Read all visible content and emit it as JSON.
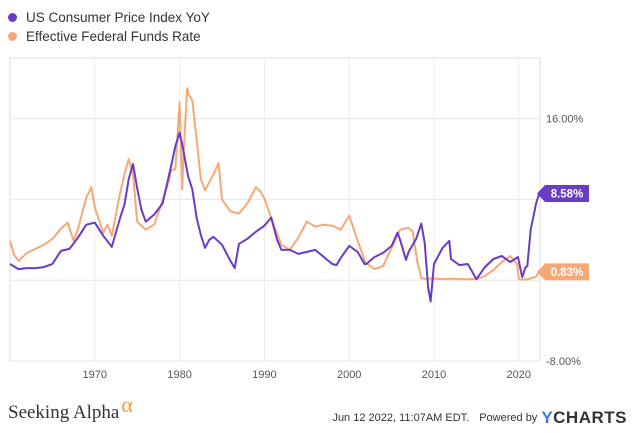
{
  "chart_data": {
    "type": "line",
    "title": "",
    "xlabel": "",
    "ylabel": "",
    "xlim": [
      1960.0,
      2022.5
    ],
    "ylim": [
      -8,
      22
    ],
    "y_ticks": [
      16,
      -8
    ],
    "y_tick_labels": [
      "16.00%",
      "-8.00%"
    ],
    "x_ticks": [
      1970,
      1980,
      1990,
      2000,
      2010,
      2020
    ],
    "x_tick_labels": [
      "1970",
      "1980",
      "1990",
      "2000",
      "2010",
      "2020"
    ],
    "grid": true,
    "legend_position": "top-left",
    "series": [
      {
        "name": "US Consumer Price Index YoY",
        "color": "#6a3bc4",
        "end_label": "8.58%",
        "x": [
          1960,
          1961,
          1962,
          1963,
          1964,
          1965,
          1966,
          1967,
          1968,
          1969,
          1970,
          1971,
          1972,
          1973,
          1973.5,
          1974,
          1974.5,
          1975,
          1975.5,
          1976,
          1977,
          1978,
          1979,
          1979.5,
          1980,
          1980.3,
          1981,
          1981.5,
          1982,
          1982.5,
          1983,
          1983.5,
          1984,
          1985,
          1986,
          1986.5,
          1987,
          1988,
          1989,
          1990,
          1990.8,
          1991.5,
          1992,
          1993,
          1994,
          1995,
          1996,
          1997,
          1998,
          1998.5,
          1999,
          2000,
          2001,
          2001.8,
          2002,
          2003,
          2004,
          2005,
          2005.7,
          2006,
          2006.7,
          2007,
          2007.9,
          2008.5,
          2008.9,
          2009.3,
          2009.6,
          2010,
          2011,
          2011.8,
          2012,
          2013,
          2014,
          2015,
          2016,
          2017,
          2018,
          2019,
          2019.9,
          2020.4,
          2020.8,
          2021,
          2021.4,
          2021.9,
          2022,
          2022.4
        ],
        "values": [
          1.6,
          1.1,
          1.2,
          1.2,
          1.3,
          1.6,
          2.9,
          3.1,
          4.2,
          5.5,
          5.7,
          4.4,
          3.3,
          6.2,
          7.5,
          10.0,
          11.5,
          9.1,
          7.0,
          5.8,
          6.5,
          7.6,
          11.3,
          13.3,
          14.6,
          13.5,
          10.3,
          9.0,
          6.2,
          4.5,
          3.2,
          4.0,
          4.3,
          3.5,
          1.9,
          1.2,
          3.6,
          4.1,
          4.8,
          5.4,
          6.2,
          4.0,
          3.0,
          3.0,
          2.6,
          2.8,
          3.0,
          2.3,
          1.6,
          1.5,
          2.2,
          3.4,
          2.8,
          1.6,
          1.6,
          2.3,
          2.7,
          3.4,
          4.7,
          4.0,
          2.0,
          2.8,
          4.1,
          5.6,
          3.7,
          -0.7,
          -2.1,
          1.6,
          3.2,
          3.9,
          2.1,
          1.5,
          1.6,
          0.1,
          1.3,
          2.1,
          2.4,
          1.8,
          2.3,
          0.3,
          1.3,
          1.4,
          5.0,
          7.0,
          7.5,
          8.58
        ]
      },
      {
        "name": "Effective Federal Funds Rate",
        "color": "#f6a877",
        "end_label": "0.83%",
        "x": [
          1960,
          1960.5,
          1961,
          1962,
          1963,
          1964,
          1965,
          1966,
          1966.8,
          1967.5,
          1968,
          1969,
          1969.6,
          1970,
          1971,
          1971.5,
          1972,
          1973,
          1973.6,
          1974,
          1974.5,
          1975,
          1976,
          1977,
          1978,
          1978.8,
          1979,
          1979.5,
          1980,
          1980.3,
          1980.5,
          1980.9,
          1981,
          1981.5,
          1982,
          1982.5,
          1983,
          1984,
          1984.6,
          1985,
          1986,
          1987,
          1988,
          1989,
          1989.5,
          1990,
          1991,
          1992,
          1993,
          1994,
          1995,
          1996,
          1997,
          1998,
          1999,
          2000,
          2001,
          2001.9,
          2002,
          2003,
          2004,
          2005,
          2006,
          2007,
          2007.5,
          2008,
          2008.5,
          2009,
          2010,
          2011,
          2012,
          2013,
          2014,
          2015,
          2016,
          2017,
          2018,
          2019,
          2019.8,
          2020,
          2020.3,
          2021,
          2022,
          2022.4
        ],
        "values": [
          3.9,
          2.5,
          1.9,
          2.7,
          3.1,
          3.5,
          4.1,
          5.1,
          5.7,
          3.9,
          5.0,
          8.2,
          9.2,
          7.2,
          4.7,
          5.5,
          4.4,
          8.7,
          10.8,
          12.0,
          10.5,
          5.8,
          5.0,
          5.5,
          7.9,
          10.0,
          10.9,
          11.0,
          17.6,
          9.0,
          13.0,
          19.0,
          18.5,
          17.8,
          14.0,
          10.0,
          8.9,
          10.5,
          11.6,
          8.0,
          6.8,
          6.6,
          7.6,
          9.2,
          8.8,
          8.1,
          5.7,
          3.5,
          3.0,
          4.2,
          5.8,
          5.3,
          5.5,
          5.4,
          5.0,
          6.4,
          3.9,
          1.8,
          1.7,
          1.1,
          1.4,
          3.2,
          5.0,
          5.2,
          4.8,
          2.0,
          0.2,
          0.15,
          0.18,
          0.1,
          0.14,
          0.11,
          0.09,
          0.13,
          0.4,
          1.0,
          1.8,
          2.4,
          1.6,
          0.08,
          0.07,
          0.08,
          0.33,
          0.83
        ]
      }
    ]
  },
  "footer": {
    "brand_left": "Seeking Alpha",
    "brand_left_mark": "α",
    "timestamp": "Jun 12 2022, 11:07AM EDT.",
    "powered_by": "Powered by",
    "brand_right_y": "Y",
    "brand_right_rest": "CHARTS"
  }
}
